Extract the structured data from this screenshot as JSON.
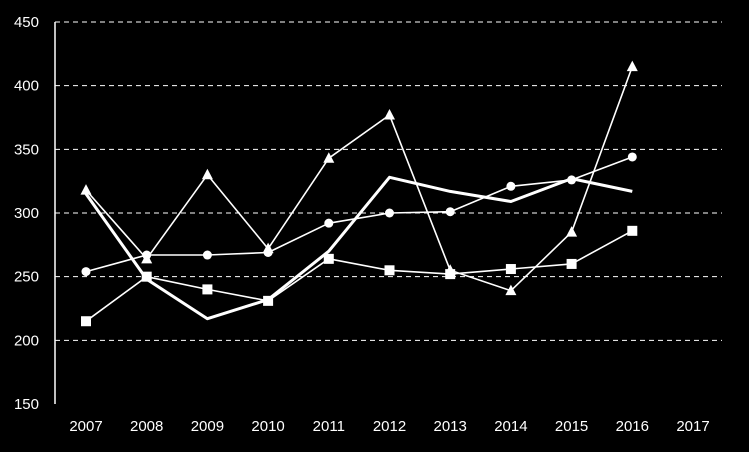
{
  "chart_data": {
    "type": "line",
    "categories": [
      "2007",
      "2008",
      "2009",
      "2010",
      "2011",
      "2012",
      "2013",
      "2014",
      "2015",
      "2016",
      "2017"
    ],
    "ylim": [
      150,
      450
    ],
    "yticks": [
      150,
      200,
      250,
      300,
      350,
      400,
      450
    ],
    "grid": true,
    "grid_style": "dashed-horizontal",
    "colors": {
      "background": "#000000",
      "foreground": "#ffffff"
    },
    "series": [
      {
        "marker": "triangle",
        "line": "thin",
        "values": [
          318,
          264,
          330,
          272,
          343,
          377,
          255,
          239,
          285,
          415,
          null
        ]
      },
      {
        "marker": "circle",
        "line": "thin",
        "values": [
          254,
          267,
          267,
          269,
          292,
          300,
          301,
          321,
          326,
          344,
          null
        ]
      },
      {
        "marker": "square",
        "line": "thin",
        "values": [
          215,
          250,
          240,
          231,
          264,
          255,
          252,
          256,
          260,
          286,
          null
        ]
      },
      {
        "marker": "none",
        "line": "thick",
        "values": [
          315,
          248,
          217,
          232,
          270,
          328,
          317,
          309,
          327,
          317,
          null
        ]
      }
    ]
  }
}
